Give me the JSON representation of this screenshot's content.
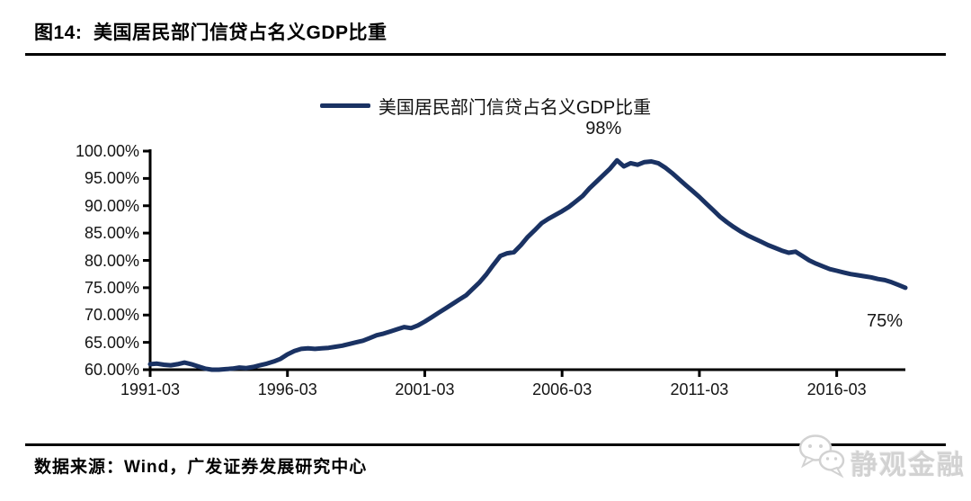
{
  "header": {
    "title": "图14:  美国居民部门信贷占名义GDP比重"
  },
  "legend": {
    "label": "美国居民部门信贷占名义GDP比重",
    "line_color": "#1a3263"
  },
  "annotations": {
    "peak": "98%",
    "end": "75%"
  },
  "footer": {
    "source": "数据来源：Wind，广发证券发展研究中心"
  },
  "watermark": {
    "label": "静观金融",
    "icon": "wechat-chat-bubbles-icon",
    "color": "#d2d2d2"
  },
  "chart_data": {
    "type": "line",
    "title": "美国居民部门信贷占名义GDP比重",
    "legend_position": "top-center",
    "grid": false,
    "y_min": 60,
    "y_max": 100,
    "y_tick_step": 5,
    "y_ticks": [
      "100.00%",
      "95.00%",
      "90.00%",
      "85.00%",
      "80.00%",
      "75.00%",
      "70.00%",
      "65.00%",
      "60.00%"
    ],
    "x_ticks": [
      "1991-03",
      "1996-03",
      "2001-03",
      "2006-03",
      "2011-03",
      "2016-03"
    ],
    "x_tick_interval_quarters": 20,
    "x_start_label": "1991-03",
    "x_end_label": "2018-09",
    "frequency": "quarterly",
    "annotations": [
      {
        "text": "98%",
        "at": "peak"
      },
      {
        "text": "75%",
        "at": "end"
      }
    ],
    "series": [
      {
        "name": "美国居民部门信贷占名义GDP比重",
        "color": "#1a3263",
        "values": [
          61.0,
          61.1,
          60.9,
          60.8,
          61.0,
          61.3,
          61.0,
          60.6,
          60.2,
          60.0,
          60.0,
          60.1,
          60.2,
          60.4,
          60.3,
          60.5,
          60.8,
          61.1,
          61.5,
          62.0,
          62.8,
          63.4,
          63.8,
          63.9,
          63.8,
          63.9,
          64.0,
          64.2,
          64.4,
          64.7,
          65.0,
          65.3,
          65.8,
          66.3,
          66.6,
          67.0,
          67.4,
          67.8,
          67.6,
          68.1,
          68.8,
          69.6,
          70.4,
          71.2,
          72.0,
          72.8,
          73.6,
          74.8,
          76.0,
          77.5,
          79.2,
          80.8,
          81.3,
          81.5,
          82.8,
          84.3,
          85.5,
          86.8,
          87.6,
          88.3,
          89.0,
          89.8,
          90.8,
          91.8,
          93.2,
          94.4,
          95.6,
          96.8,
          98.3,
          97.2,
          97.8,
          97.5,
          98.0,
          98.1,
          97.8,
          97.0,
          96.0,
          94.9,
          93.8,
          92.7,
          91.6,
          90.4,
          89.2,
          88.0,
          87.0,
          86.1,
          85.3,
          84.6,
          84.0,
          83.4,
          82.8,
          82.3,
          81.8,
          81.4,
          81.6,
          80.8,
          80.0,
          79.4,
          78.9,
          78.4,
          78.1,
          77.8,
          77.5,
          77.3,
          77.1,
          76.9,
          76.6,
          76.4,
          76.0,
          75.5,
          75.0
        ]
      }
    ]
  }
}
